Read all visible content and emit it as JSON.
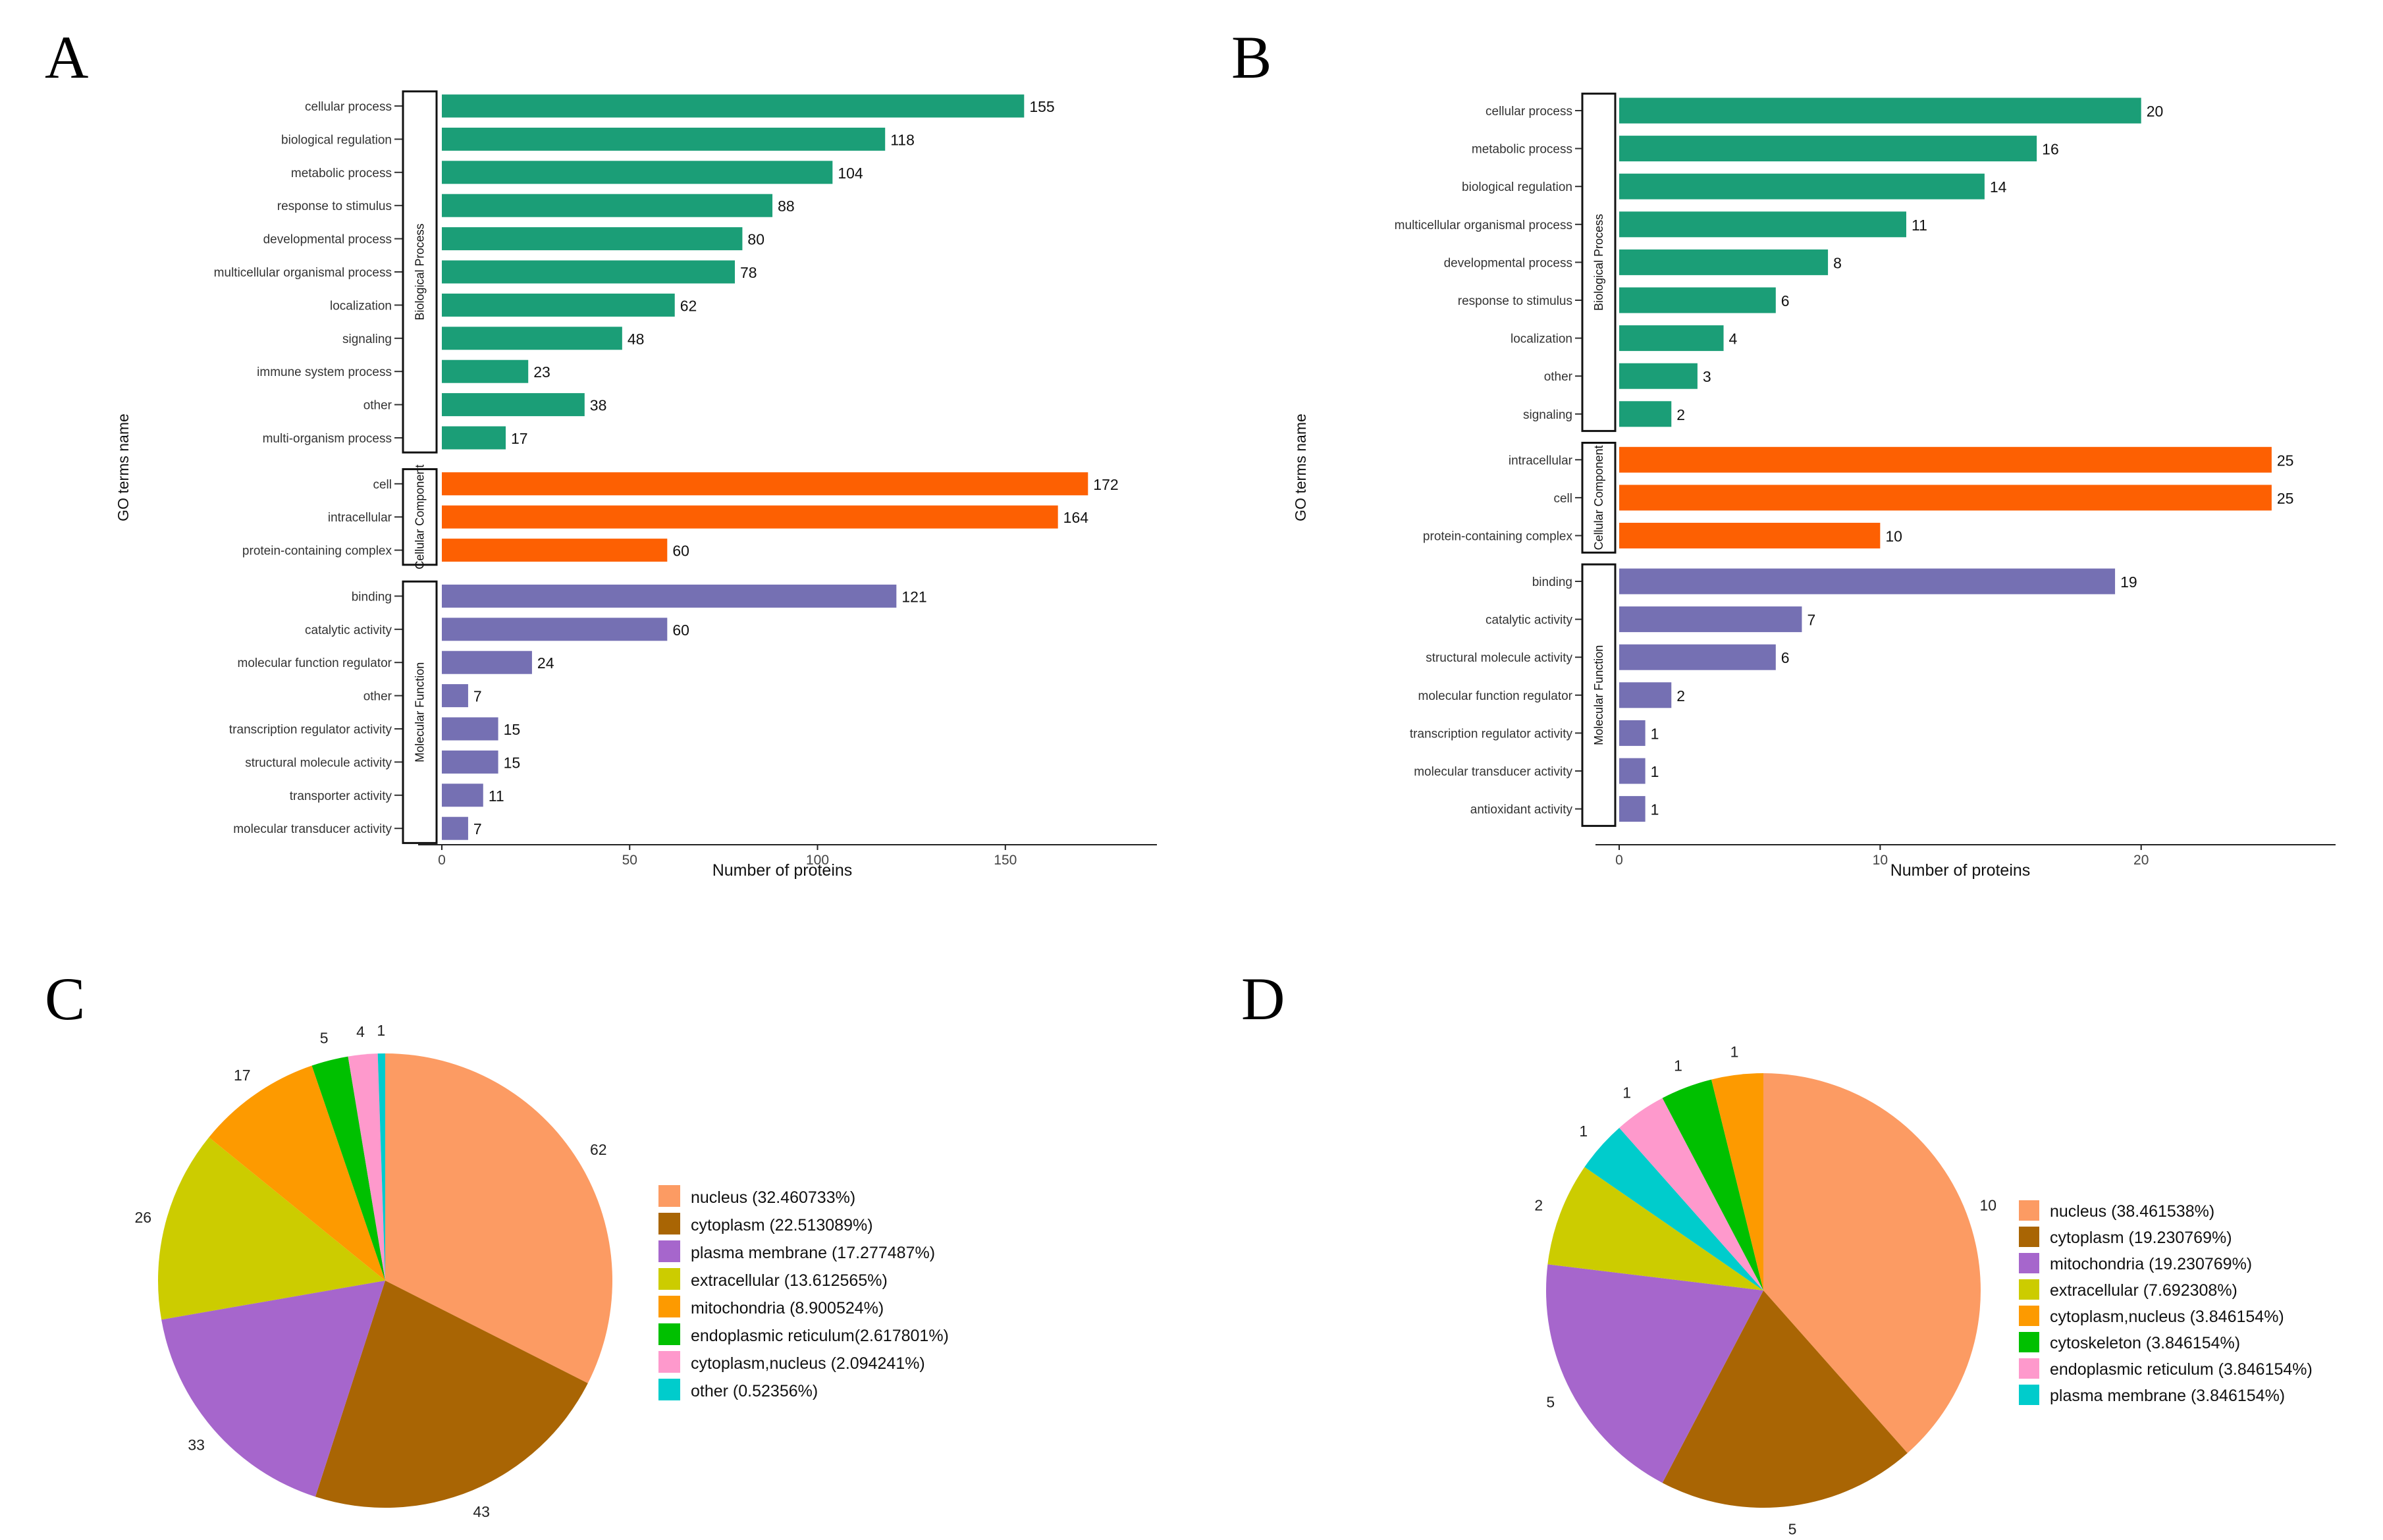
{
  "panels": {
    "A": "A",
    "B": "B",
    "C": "C",
    "D": "D"
  },
  "colors": {
    "bp": "#1b9e77",
    "cc": "#fd6002",
    "mf": "#7570b3",
    "pie": [
      "#fc9b63",
      "#a96504",
      "#a666cc",
      "#cccc00",
      "#fd9a00",
      "#00c000",
      "#fe99cc",
      "#00cccc"
    ]
  },
  "chart_data": [
    {
      "id": "A",
      "type": "bar",
      "orientation": "horizontal",
      "xlabel": "Number of proteins",
      "ylabel": "GO terms name",
      "xlim": [
        0,
        190
      ],
      "xticks": [
        0,
        50,
        100,
        150
      ],
      "groups": [
        {
          "name": "Biological Process",
          "color": "bp",
          "categories": [
            "cellular process",
            "biological regulation",
            "metabolic process",
            "response to stimulus",
            "developmental process",
            "multicellular organismal process",
            "localization",
            "signaling",
            "immune system process",
            "other",
            "multi-organism process"
          ],
          "values": [
            155,
            118,
            104,
            88,
            80,
            78,
            62,
            48,
            23,
            38,
            17
          ]
        },
        {
          "name": "Cellular Component",
          "color": "cc",
          "categories": [
            "cell",
            "intracellular",
            "protein-containing complex"
          ],
          "values": [
            172,
            164,
            60
          ]
        },
        {
          "name": "Molecular Function",
          "color": "mf",
          "categories": [
            "binding",
            "catalytic activity",
            "molecular function regulator",
            "other",
            "transcription regulator activity",
            "structural molecule activity",
            "transporter activity",
            "molecular transducer activity"
          ],
          "values": [
            121,
            60,
            24,
            7,
            15,
            15,
            11,
            7
          ]
        }
      ]
    },
    {
      "id": "B",
      "type": "bar",
      "orientation": "horizontal",
      "xlabel": "Number of proteins",
      "ylabel": "GO terms name",
      "xlim": [
        0,
        27.4
      ],
      "xticks": [
        0,
        10,
        20
      ],
      "groups": [
        {
          "name": "Biological Process",
          "color": "bp",
          "categories": [
            "cellular process",
            "metabolic process",
            "biological regulation",
            "multicellular organismal process",
            "developmental process",
            "response to stimulus",
            "localization",
            "other",
            "signaling"
          ],
          "values": [
            20,
            16,
            14,
            11,
            8,
            6,
            4,
            3,
            2
          ]
        },
        {
          "name": "Cellular Component",
          "color": "cc",
          "categories": [
            "intracellular",
            "cell",
            "protein-containing complex"
          ],
          "values": [
            25,
            25,
            10
          ]
        },
        {
          "name": "Molecular Function",
          "color": "mf",
          "categories": [
            "binding",
            "catalytic activity",
            "structural molecule activity",
            "molecular function regulator",
            "transcription regulator activity",
            "molecular transducer activity",
            "antioxidant activity"
          ],
          "values": [
            19,
            7,
            6,
            2,
            1,
            1,
            1
          ]
        }
      ]
    },
    {
      "id": "C",
      "type": "pie",
      "labels": [
        "nucleus (32.460733%)",
        "cytoplasm (22.513089%)",
        "plasma membrane (17.277487%)",
        "extracellular (13.612565%)",
        "mitochondria (8.900524%)",
        "endoplasmic reticulum(2.617801%)",
        "cytoplasm,nucleus (2.094241%)",
        "other (0.52356%)"
      ],
      "values": [
        62,
        43,
        33,
        26,
        17,
        5,
        4,
        1
      ]
    },
    {
      "id": "D",
      "type": "pie",
      "labels": [
        "nucleus (38.461538%)",
        "cytoplasm (19.230769%)",
        "mitochondria (19.230769%)",
        "extracellular (7.692308%)",
        "cytoplasm,nucleus (3.846154%)",
        "cytoskeleton (3.846154%)",
        "endoplasmic reticulum (3.846154%)",
        "plasma membrane (3.846154%)"
      ],
      "values": [
        10,
        5,
        5,
        2,
        1,
        1,
        1,
        1
      ],
      "slice_colors": [
        0,
        1,
        2,
        3,
        7,
        6,
        5,
        4
      ]
    }
  ]
}
